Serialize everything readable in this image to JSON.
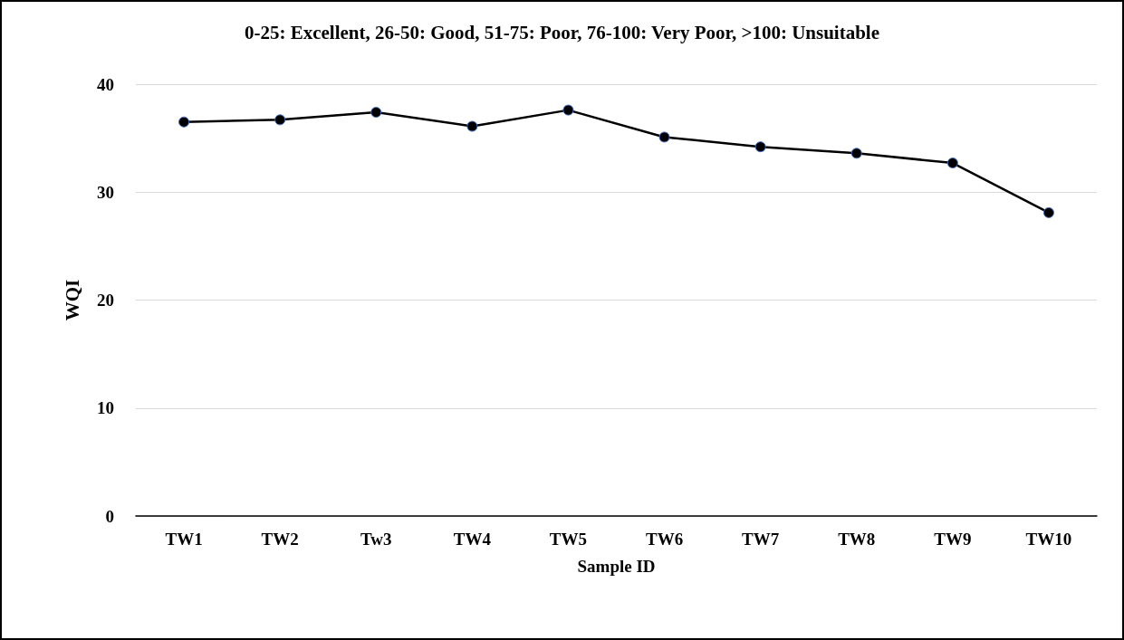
{
  "chart_data": {
    "type": "line",
    "title": "0-25: Excellent, 26-50: Good, 51-75: Poor, 76-100: Very Poor, >100: Unsuitable",
    "xlabel": "Sample ID",
    "ylabel": "WQI",
    "categories": [
      "TW1",
      "TW2",
      "Tw3",
      "TW4",
      "TW5",
      "TW6",
      "TW7",
      "TW8",
      "TW9",
      "TW10"
    ],
    "series": [
      {
        "color": "#000000",
        "values": [
          36.5,
          36.7,
          37.4,
          36.1,
          37.6,
          35.1,
          34.2,
          33.6,
          32.7,
          28.1
        ]
      }
    ],
    "ylim": [
      0,
      40
    ],
    "yticks": [
      0,
      10,
      20,
      30,
      40
    ],
    "grid": "y",
    "marker": "circle",
    "line_style": "solid"
  }
}
